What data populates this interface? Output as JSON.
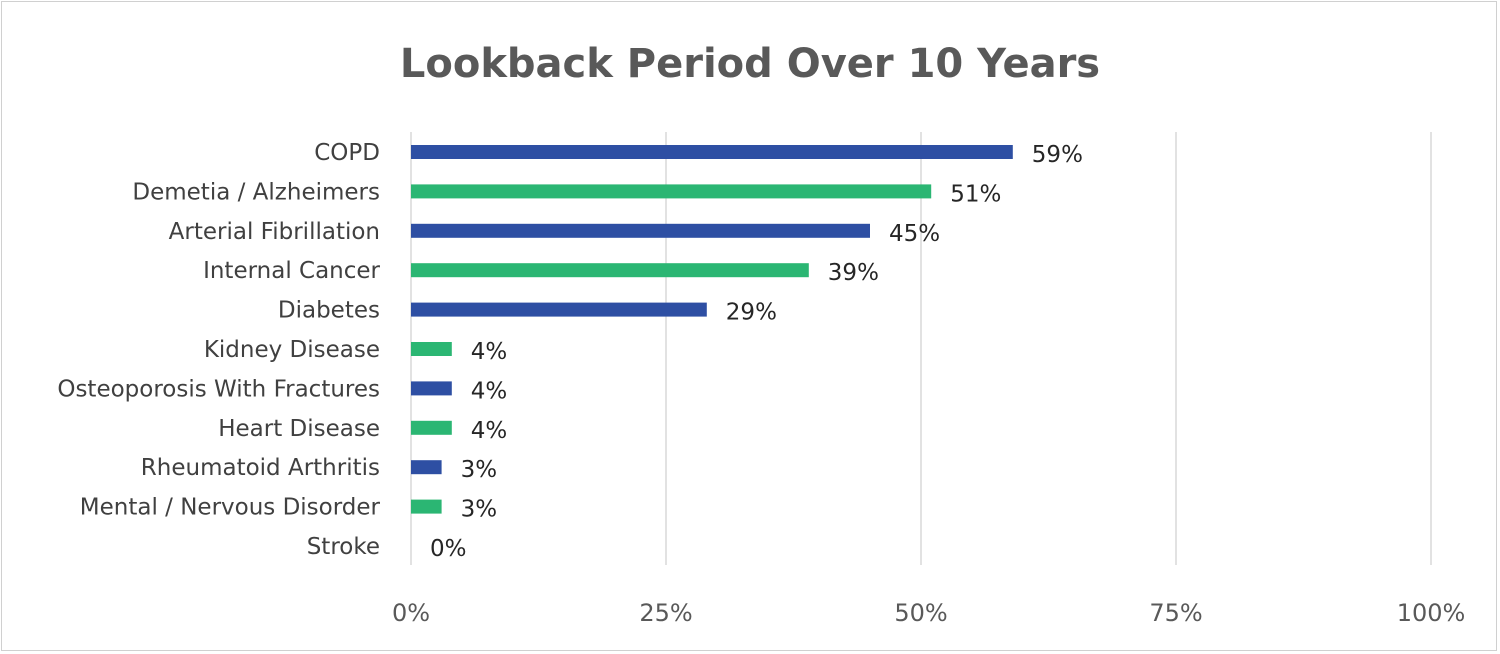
{
  "chart_data": {
    "type": "bar",
    "orientation": "horizontal",
    "title": "Lookback Period Over 10 Years",
    "xlabel": "",
    "ylabel": "",
    "categories": [
      "COPD",
      "Demetia / Alzheimers",
      "Arterial Fibrillation",
      "Internal Cancer",
      "Diabetes",
      "Kidney Disease",
      "Osteoporosis With Fractures",
      "Heart Disease",
      "Rheumatoid Arthritis",
      "Mental / Nervous Disorder",
      "Stroke"
    ],
    "values": [
      59,
      51,
      45,
      39,
      29,
      4,
      4,
      4,
      3,
      3,
      0
    ],
    "data_labels": [
      "59%",
      "51%",
      "45%",
      "39%",
      "29%",
      "4%",
      "4%",
      "4%",
      "3%",
      "3%",
      "0%"
    ],
    "bar_colors": [
      "#2e4fa3",
      "#2bb673",
      "#2e4fa3",
      "#2bb673",
      "#2e4fa3",
      "#2bb673",
      "#2e4fa3",
      "#2bb673",
      "#2e4fa3",
      "#2bb673",
      "#2e4fa3"
    ],
    "xlim": [
      0,
      100
    ],
    "xticks": [
      0,
      25,
      50,
      75,
      100
    ],
    "xtick_labels": [
      "0%",
      "25%",
      "50%",
      "75%",
      "100%"
    ],
    "grid": "vertical",
    "legend": "none"
  }
}
